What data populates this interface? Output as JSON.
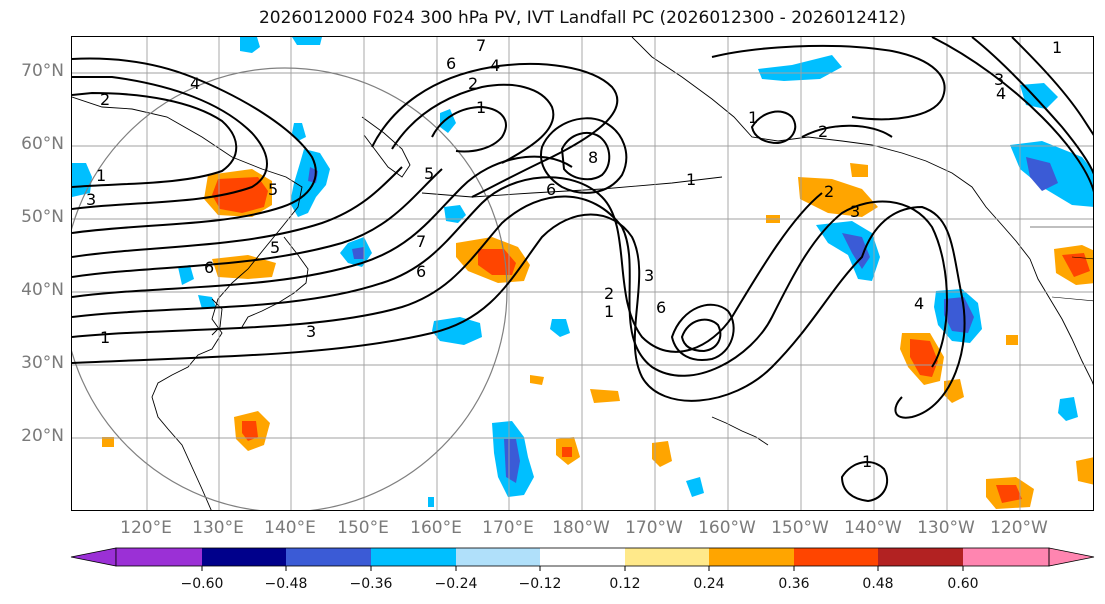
{
  "title": "2026012000 F024 300 hPa PV, IVT Landfall PC (2026012300 - 2026012412)",
  "map": {
    "lat_labels": [
      "70°N",
      "60°N",
      "50°N",
      "40°N",
      "30°N",
      "20°N"
    ],
    "lon_labels": [
      "120°E",
      "130°E",
      "140°E",
      "150°E",
      "160°E",
      "170°E",
      "180°W",
      "170°W",
      "160°W",
      "150°W",
      "140°W",
      "130°W",
      "120°W"
    ],
    "contour_labels": [
      "1",
      "2",
      "3",
      "4",
      "5",
      "6",
      "7",
      "8"
    ],
    "colors": {
      "land_outline": "#000000",
      "grid": "#a0a0a0",
      "contour": "#000000",
      "circle": "#808080"
    }
  },
  "colorbar": {
    "tick_labels": [
      "−0.60",
      "−0.48",
      "−0.36",
      "−0.24",
      "−0.12",
      "0.12",
      "0.24",
      "0.36",
      "0.48",
      "0.60"
    ],
    "colors": [
      "#9b30d6",
      "#00008b",
      "#3b5bd6",
      "#00bfff",
      "#b0e0fa",
      "#ffffff",
      "#ffe98a",
      "#ffa500",
      "#ff4500",
      "#b22222",
      "#ff85b0"
    ]
  }
}
